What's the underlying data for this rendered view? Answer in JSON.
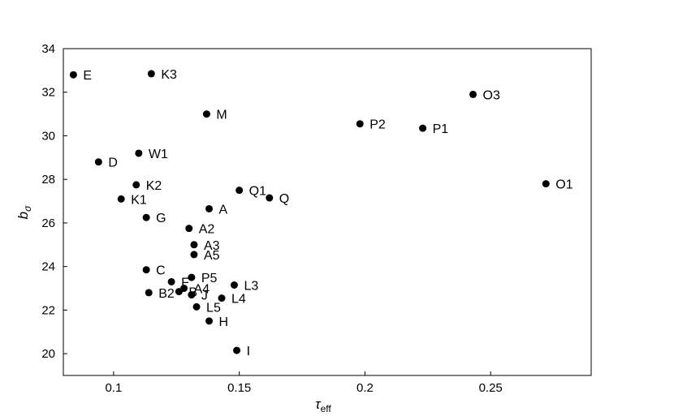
{
  "chart_data": {
    "type": "scatter",
    "title": "",
    "xlabel": "τ",
    "xlabel_sub": "eff",
    "ylabel": "b",
    "ylabel_sub": "σ",
    "xlim": [
      0.08,
      0.29
    ],
    "ylim": [
      19,
      34
    ],
    "xticks": [
      0.1,
      0.15,
      0.2,
      0.25
    ],
    "xtick_labels": [
      "0.1",
      "0.15",
      "0.2",
      "0.25"
    ],
    "yticks": [
      20,
      22,
      24,
      26,
      28,
      30,
      32,
      34
    ],
    "ytick_labels": [
      "20",
      "22",
      "24",
      "26",
      "28",
      "30",
      "32",
      "34"
    ],
    "grid": false,
    "legend": "none",
    "marker_color": "#000000",
    "points": [
      {
        "label": "E",
        "x": 0.084,
        "y": 32.8
      },
      {
        "label": "K3",
        "x": 0.115,
        "y": 32.85
      },
      {
        "label": "M",
        "x": 0.137,
        "y": 31.0
      },
      {
        "label": "P2",
        "x": 0.198,
        "y": 30.55
      },
      {
        "label": "P1",
        "x": 0.223,
        "y": 30.35
      },
      {
        "label": "O3",
        "x": 0.243,
        "y": 31.9
      },
      {
        "label": "O1",
        "x": 0.272,
        "y": 27.8
      },
      {
        "label": "W1",
        "x": 0.11,
        "y": 29.2
      },
      {
        "label": "D",
        "x": 0.094,
        "y": 28.8
      },
      {
        "label": "K2",
        "x": 0.109,
        "y": 27.75
      },
      {
        "label": "K1",
        "x": 0.103,
        "y": 27.1
      },
      {
        "label": "Q1",
        "x": 0.15,
        "y": 27.5
      },
      {
        "label": "Q",
        "x": 0.162,
        "y": 27.15
      },
      {
        "label": "A",
        "x": 0.138,
        "y": 26.65
      },
      {
        "label": "G",
        "x": 0.113,
        "y": 26.25
      },
      {
        "label": "A2",
        "x": 0.13,
        "y": 25.75
      },
      {
        "label": "A3",
        "x": 0.132,
        "y": 25.0
      },
      {
        "label": "A5",
        "x": 0.132,
        "y": 24.55
      },
      {
        "label": "C",
        "x": 0.113,
        "y": 23.85
      },
      {
        "label": "P5",
        "x": 0.131,
        "y": 23.5
      },
      {
        "label": "F",
        "x": 0.123,
        "y": 23.3
      },
      {
        "label": "L3",
        "x": 0.148,
        "y": 23.15
      },
      {
        "label": "A4",
        "x": 0.128,
        "y": 23.0
      },
      {
        "label": "B2",
        "x": 0.114,
        "y": 22.8
      },
      {
        "label": "B",
        "x": 0.126,
        "y": 22.85
      },
      {
        "label": "J",
        "x": 0.131,
        "y": 22.7
      },
      {
        "label": "L4",
        "x": 0.143,
        "y": 22.55
      },
      {
        "label": "L5",
        "x": 0.133,
        "y": 22.15
      },
      {
        "label": "H",
        "x": 0.138,
        "y": 21.5
      },
      {
        "label": "I",
        "x": 0.149,
        "y": 20.15
      }
    ]
  }
}
